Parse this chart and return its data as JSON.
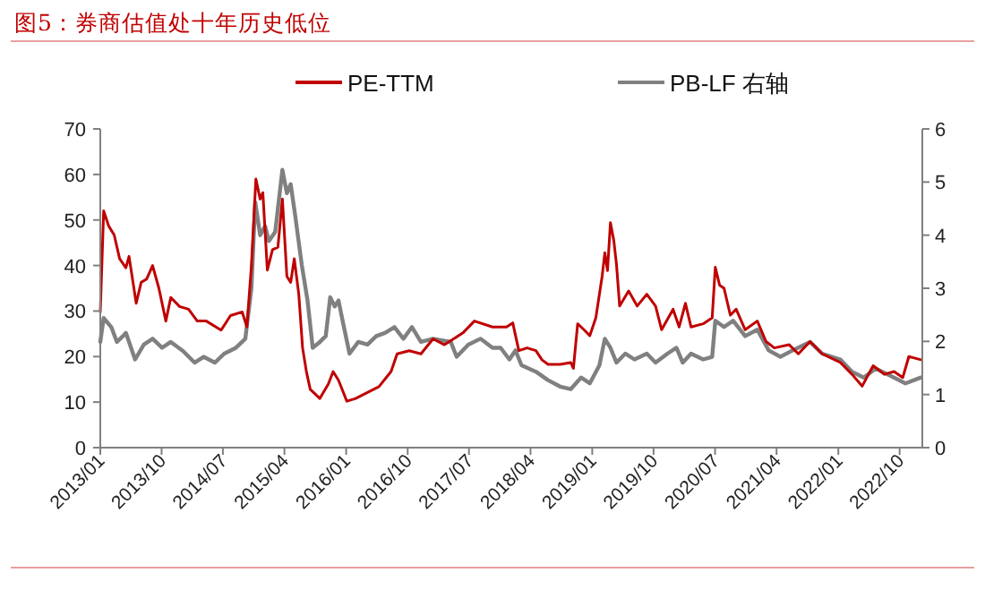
{
  "chart_data": {
    "type": "line",
    "title": "图5：券商估值处十年历史低位",
    "xlim": [
      "2013-01-01",
      "2023-01-10"
    ],
    "xticks": [
      {
        "value": "2013-01-01",
        "label": "2013/01"
      },
      {
        "value": "2013-10-01",
        "label": "2013/10"
      },
      {
        "value": "2014-07-01",
        "label": "2014/07"
      },
      {
        "value": "2015-04-01",
        "label": "2015/04"
      },
      {
        "value": "2016-01-01",
        "label": "2016/01"
      },
      {
        "value": "2016-10-01",
        "label": "2016/10"
      },
      {
        "value": "2017-07-01",
        "label": "2017/07"
      },
      {
        "value": "2018-04-01",
        "label": "2018/04"
      },
      {
        "value": "2019-01-01",
        "label": "2019/01"
      },
      {
        "value": "2019-10-01",
        "label": "2019/10"
      },
      {
        "value": "2020-07-01",
        "label": "2020/07"
      },
      {
        "value": "2021-04-01",
        "label": "2021/04"
      },
      {
        "value": "2022-01-01",
        "label": "2022/01"
      },
      {
        "value": "2022-10-01",
        "label": "2022/10"
      }
    ],
    "ylim": [
      0,
      70
    ],
    "yticks": [
      0,
      10,
      20,
      30,
      40,
      50,
      60,
      70
    ],
    "y2lim": [
      0,
      6
    ],
    "y2ticks": [
      0,
      1,
      2,
      3,
      4,
      5,
      6
    ],
    "legend": "top",
    "grid": false,
    "series": [
      {
        "name": "PE-TTM",
        "color": "#c00000",
        "x": [
          "2013-01-01",
          "2013-01-16",
          "2013-02-07",
          "2013-03-04",
          "2013-03-28",
          "2013-04-25",
          "2013-05-09",
          "2013-06-10",
          "2013-07-02",
          "2013-07-26",
          "2013-08-22",
          "2013-09-19",
          "2013-10-20",
          "2013-11-11",
          "2013-12-20",
          "2014-01-29",
          "2014-03-09",
          "2014-04-18",
          "2014-06-23",
          "2014-08-04",
          "2014-09-25",
          "2014-10-16",
          "2014-11-05",
          "2014-11-25",
          "2014-12-14",
          "2014-12-26",
          "2015-01-15",
          "2015-02-07",
          "2015-03-03",
          "2015-03-23",
          "2015-04-12",
          "2015-04-29",
          "2015-05-15",
          "2015-06-04",
          "2015-06-21",
          "2015-07-08",
          "2015-07-25",
          "2015-09-06",
          "2015-10-14",
          "2015-11-04",
          "2015-11-28",
          "2016-01-04",
          "2016-02-12",
          "2016-04-05",
          "2016-05-26",
          "2016-07-19",
          "2016-08-15",
          "2016-10-08",
          "2016-11-29",
          "2017-01-22",
          "2017-03-14",
          "2017-06-04",
          "2017-07-25",
          "2017-10-14",
          "2017-12-15",
          "2018-01-12",
          "2018-02-08",
          "2018-03-17",
          "2018-04-25",
          "2018-05-22",
          "2018-06-18",
          "2018-08-11",
          "2018-09-27",
          "2018-10-09",
          "2018-10-28",
          "2018-11-25",
          "2018-12-21",
          "2019-01-17",
          "2019-02-14",
          "2019-02-26",
          "2019-03-10",
          "2019-03-23",
          "2019-04-07",
          "2019-04-19",
          "2019-05-03",
          "2019-06-12",
          "2019-07-20",
          "2019-09-01",
          "2019-10-10",
          "2019-11-06",
          "2019-12-27",
          "2020-01-23",
          "2020-02-20",
          "2020-03-16",
          "2020-05-09",
          "2020-06-18",
          "2020-07-02",
          "2020-07-21",
          "2020-08-10",
          "2020-09-07",
          "2020-10-03",
          "2020-11-12",
          "2021-01-05",
          "2021-02-13",
          "2021-03-22",
          "2021-05-27",
          "2021-07-07",
          "2021-08-28",
          "2021-10-21",
          "2022-01-10",
          "2022-03-03",
          "2022-04-17",
          "2022-06-05",
          "2022-07-25",
          "2022-09-06",
          "2022-10-15",
          "2022-11-11",
          "2023-01-04"
        ],
        "values": [
          29.8,
          52,
          48.7,
          46.7,
          41.5,
          39.5,
          42,
          31.7,
          36.3,
          37,
          40,
          35,
          27.8,
          33,
          31,
          30.4,
          27.8,
          27.8,
          25.8,
          29,
          29.8,
          26.5,
          40,
          59,
          54.6,
          56,
          39,
          43.5,
          44,
          54.6,
          37.6,
          36.3,
          41.5,
          33.7,
          21.9,
          16.7,
          12.8,
          10.8,
          14,
          16.7,
          14.8,
          10.2,
          10.8,
          12.1,
          13.4,
          16.7,
          20.6,
          21.3,
          20.6,
          23.9,
          22.6,
          25.2,
          27.8,
          26.5,
          26.5,
          27.4,
          21.3,
          21.9,
          21.3,
          19.3,
          18.3,
          18.3,
          18.7,
          17.4,
          27.2,
          25.9,
          24.6,
          28.5,
          37.6,
          42.8,
          38.9,
          49.4,
          45.5,
          40.2,
          31.1,
          34.4,
          31.1,
          33.7,
          31.1,
          25.9,
          30.4,
          26.5,
          31.7,
          26.5,
          27.2,
          28.5,
          39.6,
          35.7,
          35,
          29.1,
          30.4,
          25.9,
          27.8,
          23.3,
          21.9,
          22.6,
          20.6,
          23.3,
          20.6,
          18.7,
          16.1,
          13.5,
          18,
          16.1,
          16.7,
          15.4,
          20,
          19.3
        ]
      },
      {
        "name": "PB-LF 右轴",
        "color": "#808080",
        "axis": "y2",
        "x": [
          "2013-01-01",
          "2013-01-16",
          "2013-02-19",
          "2013-03-16",
          "2013-04-12",
          "2013-04-25",
          "2013-06-05",
          "2013-07-14",
          "2013-08-22",
          "2013-10-03",
          "2013-11-11",
          "2014-01-04",
          "2014-02-25",
          "2014-04-06",
          "2014-05-26",
          "2014-07-07",
          "2014-08-28",
          "2014-10-09",
          "2014-11-05",
          "2014-11-22",
          "2014-12-14",
          "2015-01-05",
          "2015-01-22",
          "2015-02-19",
          "2015-03-23",
          "2015-04-12",
          "2015-04-29",
          "2015-05-20",
          "2015-06-17",
          "2015-07-13",
          "2015-08-05",
          "2015-09-06",
          "2015-10-02",
          "2015-10-22",
          "2015-11-11",
          "2015-11-28",
          "2015-12-19",
          "2016-01-16",
          "2016-02-24",
          "2016-04-05",
          "2016-05-14",
          "2016-06-22",
          "2016-08-03",
          "2016-09-12",
          "2016-10-20",
          "2016-11-29",
          "2017-01-22",
          "2017-04-11",
          "2017-05-07",
          "2017-06-28",
          "2017-08-21",
          "2017-10-14",
          "2017-11-19",
          "2017-12-28",
          "2018-01-24",
          "2018-02-20",
          "2018-04-25",
          "2018-06-18",
          "2018-08-11",
          "2018-09-27",
          "2018-11-12",
          "2018-12-21",
          "2019-02-02",
          "2019-02-26",
          "2019-03-23",
          "2019-04-19",
          "2019-05-28",
          "2019-07-08",
          "2019-09-01",
          "2019-10-10",
          "2019-12-02",
          "2020-01-11",
          "2020-02-08",
          "2020-03-16",
          "2020-05-09",
          "2020-06-18",
          "2020-07-02",
          "2020-08-10",
          "2020-09-19",
          "2020-11-12",
          "2021-01-05",
          "2021-02-25",
          "2021-04-18",
          "2021-06-11",
          "2021-08-28",
          "2021-10-21",
          "2022-01-10",
          "2022-03-03",
          "2022-04-24",
          "2022-06-17",
          "2022-09-06",
          "2022-10-27",
          "2023-01-04"
        ],
        "values": [
          1.99,
          2.44,
          2.27,
          1.99,
          2.1,
          2.16,
          1.66,
          1.94,
          2.05,
          1.88,
          1.99,
          1.82,
          1.6,
          1.71,
          1.6,
          1.77,
          1.88,
          2.05,
          3.0,
          4.62,
          4.0,
          4.17,
          3.89,
          4.06,
          5.23,
          4.79,
          4.96,
          4.34,
          3.45,
          2.77,
          1.88,
          1.99,
          2.1,
          2.83,
          2.66,
          2.77,
          2.33,
          1.77,
          1.99,
          1.94,
          2.1,
          2.16,
          2.27,
          2.05,
          2.27,
          1.99,
          2.05,
          1.99,
          1.71,
          1.94,
          2.05,
          1.88,
          1.88,
          1.66,
          1.83,
          1.55,
          1.43,
          1.27,
          1.15,
          1.1,
          1.32,
          1.21,
          1.55,
          2.05,
          1.88,
          1.6,
          1.77,
          1.66,
          1.77,
          1.6,
          1.77,
          1.88,
          1.6,
          1.77,
          1.66,
          1.71,
          2.39,
          2.27,
          2.39,
          2.1,
          2.22,
          1.83,
          1.71,
          1.83,
          1.99,
          1.77,
          1.66,
          1.43,
          1.32,
          1.49,
          1.32,
          1.21,
          1.32
        ]
      }
    ]
  }
}
